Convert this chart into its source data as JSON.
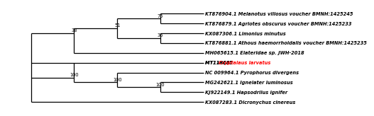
{
  "taxa": [
    {
      "label": "KT876904.1 Melanotus villosus voucher BMNH:1425245",
      "color": "black"
    },
    {
      "label": "KT876879.1 Agriotes obscurus voucher BMNH:1425233",
      "color": "black"
    },
    {
      "label": "KX087306.1 Limonius minutus",
      "color": "black"
    },
    {
      "label": "KT876881.1 Athous haemorrhoidalis voucher BMNH:1425235",
      "color": "black"
    },
    {
      "label": "MH065615.1 Elateridae sp. JWH-2018",
      "color": "black"
    },
    {
      "label_black": "MT118665 ",
      "label_red": "Cryptalaus larvatus",
      "color": "mixed"
    },
    {
      "label": "NC 009964.1 Pyrophorus divergens",
      "color": "black"
    },
    {
      "label": "MG242621.1 Ignelater luminosus",
      "color": "black"
    },
    {
      "label": "KJ922149.1 Hapsodrilus ignifer",
      "color": "black"
    },
    {
      "label": "KX087283.1 Dicronychus cinereus",
      "color": "black"
    }
  ],
  "x_root": 10,
  "x_38": 28,
  "x_51": 46,
  "x_75": 64,
  "x_36": 64,
  "x_100L": 28,
  "x_100M": 46,
  "x_100R": 64,
  "x_tip": 82,
  "font_size": 4.8,
  "bootstrap_font_size": 4.8,
  "line_width": 0.9,
  "bg_color": "white",
  "xlim": [
    0,
    100
  ],
  "ylim": [
    0.3,
    10.7
  ]
}
